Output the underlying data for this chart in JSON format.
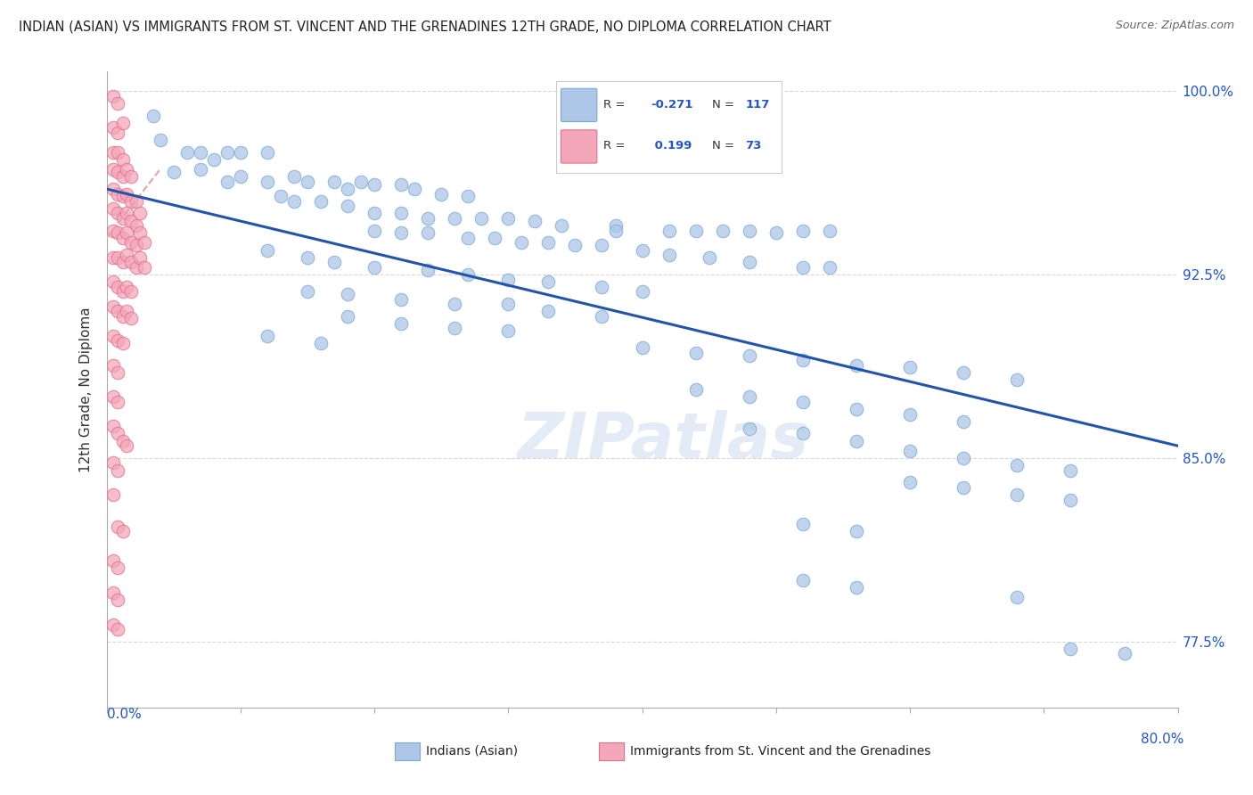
{
  "title": "INDIAN (ASIAN) VS IMMIGRANTS FROM ST. VINCENT AND THE GRENADINES 12TH GRADE, NO DIPLOMA CORRELATION CHART",
  "source": "Source: ZipAtlas.com",
  "ylabel": "12th Grade, No Diploma",
  "xmin": 0.0,
  "xmax": 0.8,
  "ymin": 0.748,
  "ymax": 1.008,
  "blue_color": "#aec6e8",
  "blue_edge_color": "#7aaad0",
  "pink_color": "#f4a7b9",
  "pink_edge_color": "#e07090",
  "line_color": "#2255aa",
  "trendline_pink_color": "#e8a0b0",
  "watermark": "ZIPatlas",
  "blue_scatter": [
    [
      0.035,
      0.99
    ],
    [
      0.04,
      0.98
    ],
    [
      0.06,
      0.975
    ],
    [
      0.07,
      0.975
    ],
    [
      0.08,
      0.972
    ],
    [
      0.09,
      0.975
    ],
    [
      0.1,
      0.975
    ],
    [
      0.12,
      0.975
    ],
    [
      0.05,
      0.967
    ],
    [
      0.07,
      0.968
    ],
    [
      0.09,
      0.963
    ],
    [
      0.1,
      0.965
    ],
    [
      0.12,
      0.963
    ],
    [
      0.14,
      0.965
    ],
    [
      0.15,
      0.963
    ],
    [
      0.17,
      0.963
    ],
    [
      0.18,
      0.96
    ],
    [
      0.19,
      0.963
    ],
    [
      0.2,
      0.962
    ],
    [
      0.22,
      0.962
    ],
    [
      0.23,
      0.96
    ],
    [
      0.25,
      0.958
    ],
    [
      0.27,
      0.957
    ],
    [
      0.13,
      0.957
    ],
    [
      0.14,
      0.955
    ],
    [
      0.16,
      0.955
    ],
    [
      0.18,
      0.953
    ],
    [
      0.2,
      0.95
    ],
    [
      0.22,
      0.95
    ],
    [
      0.24,
      0.948
    ],
    [
      0.26,
      0.948
    ],
    [
      0.28,
      0.948
    ],
    [
      0.3,
      0.948
    ],
    [
      0.32,
      0.947
    ],
    [
      0.34,
      0.945
    ],
    [
      0.38,
      0.945
    ],
    [
      0.38,
      0.943
    ],
    [
      0.42,
      0.943
    ],
    [
      0.44,
      0.943
    ],
    [
      0.46,
      0.943
    ],
    [
      0.48,
      0.943
    ],
    [
      0.5,
      0.942
    ],
    [
      0.52,
      0.943
    ],
    [
      0.54,
      0.943
    ],
    [
      0.2,
      0.943
    ],
    [
      0.22,
      0.942
    ],
    [
      0.24,
      0.942
    ],
    [
      0.27,
      0.94
    ],
    [
      0.29,
      0.94
    ],
    [
      0.31,
      0.938
    ],
    [
      0.33,
      0.938
    ],
    [
      0.35,
      0.937
    ],
    [
      0.37,
      0.937
    ],
    [
      0.4,
      0.935
    ],
    [
      0.42,
      0.933
    ],
    [
      0.45,
      0.932
    ],
    [
      0.48,
      0.93
    ],
    [
      0.52,
      0.928
    ],
    [
      0.54,
      0.928
    ],
    [
      0.12,
      0.935
    ],
    [
      0.15,
      0.932
    ],
    [
      0.17,
      0.93
    ],
    [
      0.2,
      0.928
    ],
    [
      0.24,
      0.927
    ],
    [
      0.27,
      0.925
    ],
    [
      0.3,
      0.923
    ],
    [
      0.33,
      0.922
    ],
    [
      0.37,
      0.92
    ],
    [
      0.4,
      0.918
    ],
    [
      0.15,
      0.918
    ],
    [
      0.18,
      0.917
    ],
    [
      0.22,
      0.915
    ],
    [
      0.26,
      0.913
    ],
    [
      0.3,
      0.913
    ],
    [
      0.33,
      0.91
    ],
    [
      0.37,
      0.908
    ],
    [
      0.18,
      0.908
    ],
    [
      0.22,
      0.905
    ],
    [
      0.26,
      0.903
    ],
    [
      0.3,
      0.902
    ],
    [
      0.12,
      0.9
    ],
    [
      0.16,
      0.897
    ],
    [
      0.4,
      0.895
    ],
    [
      0.44,
      0.893
    ],
    [
      0.48,
      0.892
    ],
    [
      0.52,
      0.89
    ],
    [
      0.56,
      0.888
    ],
    [
      0.6,
      0.887
    ],
    [
      0.64,
      0.885
    ],
    [
      0.68,
      0.882
    ],
    [
      0.44,
      0.878
    ],
    [
      0.48,
      0.875
    ],
    [
      0.52,
      0.873
    ],
    [
      0.56,
      0.87
    ],
    [
      0.6,
      0.868
    ],
    [
      0.64,
      0.865
    ],
    [
      0.48,
      0.862
    ],
    [
      0.52,
      0.86
    ],
    [
      0.56,
      0.857
    ],
    [
      0.6,
      0.853
    ],
    [
      0.64,
      0.85
    ],
    [
      0.68,
      0.847
    ],
    [
      0.72,
      0.845
    ],
    [
      0.6,
      0.84
    ],
    [
      0.64,
      0.838
    ],
    [
      0.68,
      0.835
    ],
    [
      0.72,
      0.833
    ],
    [
      0.52,
      0.823
    ],
    [
      0.56,
      0.82
    ],
    [
      0.52,
      0.8
    ],
    [
      0.56,
      0.797
    ],
    [
      0.68,
      0.793
    ],
    [
      0.72,
      0.772
    ],
    [
      0.76,
      0.77
    ]
  ],
  "pink_scatter": [
    [
      0.005,
      0.998
    ],
    [
      0.008,
      0.995
    ],
    [
      0.005,
      0.985
    ],
    [
      0.008,
      0.983
    ],
    [
      0.012,
      0.987
    ],
    [
      0.005,
      0.975
    ],
    [
      0.008,
      0.975
    ],
    [
      0.012,
      0.972
    ],
    [
      0.005,
      0.968
    ],
    [
      0.008,
      0.967
    ],
    [
      0.012,
      0.965
    ],
    [
      0.015,
      0.968
    ],
    [
      0.018,
      0.965
    ],
    [
      0.005,
      0.96
    ],
    [
      0.008,
      0.958
    ],
    [
      0.012,
      0.957
    ],
    [
      0.015,
      0.958
    ],
    [
      0.018,
      0.955
    ],
    [
      0.022,
      0.955
    ],
    [
      0.005,
      0.952
    ],
    [
      0.008,
      0.95
    ],
    [
      0.012,
      0.948
    ],
    [
      0.015,
      0.95
    ],
    [
      0.018,
      0.947
    ],
    [
      0.022,
      0.945
    ],
    [
      0.025,
      0.95
    ],
    [
      0.005,
      0.943
    ],
    [
      0.008,
      0.942
    ],
    [
      0.012,
      0.94
    ],
    [
      0.015,
      0.942
    ],
    [
      0.018,
      0.938
    ],
    [
      0.022,
      0.937
    ],
    [
      0.025,
      0.942
    ],
    [
      0.028,
      0.938
    ],
    [
      0.005,
      0.932
    ],
    [
      0.008,
      0.932
    ],
    [
      0.012,
      0.93
    ],
    [
      0.015,
      0.933
    ],
    [
      0.018,
      0.93
    ],
    [
      0.022,
      0.928
    ],
    [
      0.025,
      0.932
    ],
    [
      0.028,
      0.928
    ],
    [
      0.005,
      0.922
    ],
    [
      0.008,
      0.92
    ],
    [
      0.012,
      0.918
    ],
    [
      0.015,
      0.92
    ],
    [
      0.018,
      0.918
    ],
    [
      0.005,
      0.912
    ],
    [
      0.008,
      0.91
    ],
    [
      0.012,
      0.908
    ],
    [
      0.015,
      0.91
    ],
    [
      0.018,
      0.907
    ],
    [
      0.005,
      0.9
    ],
    [
      0.008,
      0.898
    ],
    [
      0.012,
      0.897
    ],
    [
      0.005,
      0.888
    ],
    [
      0.008,
      0.885
    ],
    [
      0.005,
      0.875
    ],
    [
      0.008,
      0.873
    ],
    [
      0.005,
      0.863
    ],
    [
      0.008,
      0.86
    ],
    [
      0.012,
      0.857
    ],
    [
      0.015,
      0.855
    ],
    [
      0.005,
      0.848
    ],
    [
      0.008,
      0.845
    ],
    [
      0.005,
      0.835
    ],
    [
      0.008,
      0.822
    ],
    [
      0.012,
      0.82
    ],
    [
      0.005,
      0.808
    ],
    [
      0.008,
      0.805
    ],
    [
      0.005,
      0.795
    ],
    [
      0.008,
      0.792
    ],
    [
      0.005,
      0.782
    ],
    [
      0.008,
      0.78
    ]
  ],
  "blue_trend_x": [
    0.0,
    0.8
  ],
  "blue_trend_y": [
    0.96,
    0.855
  ],
  "pink_trend_x": [
    0.0,
    0.04
  ],
  "pink_trend_y": [
    0.94,
    0.968
  ],
  "right_yticks": [
    1.0,
    0.925,
    0.85,
    0.775
  ],
  "right_yticklabels": [
    "100.0%",
    "92.5%",
    "85.0%",
    "77.5%"
  ],
  "grid_yticks": [
    1.0,
    0.925,
    0.85,
    0.775
  ],
  "background_color": "#ffffff",
  "grid_color": "#d8d8d8"
}
